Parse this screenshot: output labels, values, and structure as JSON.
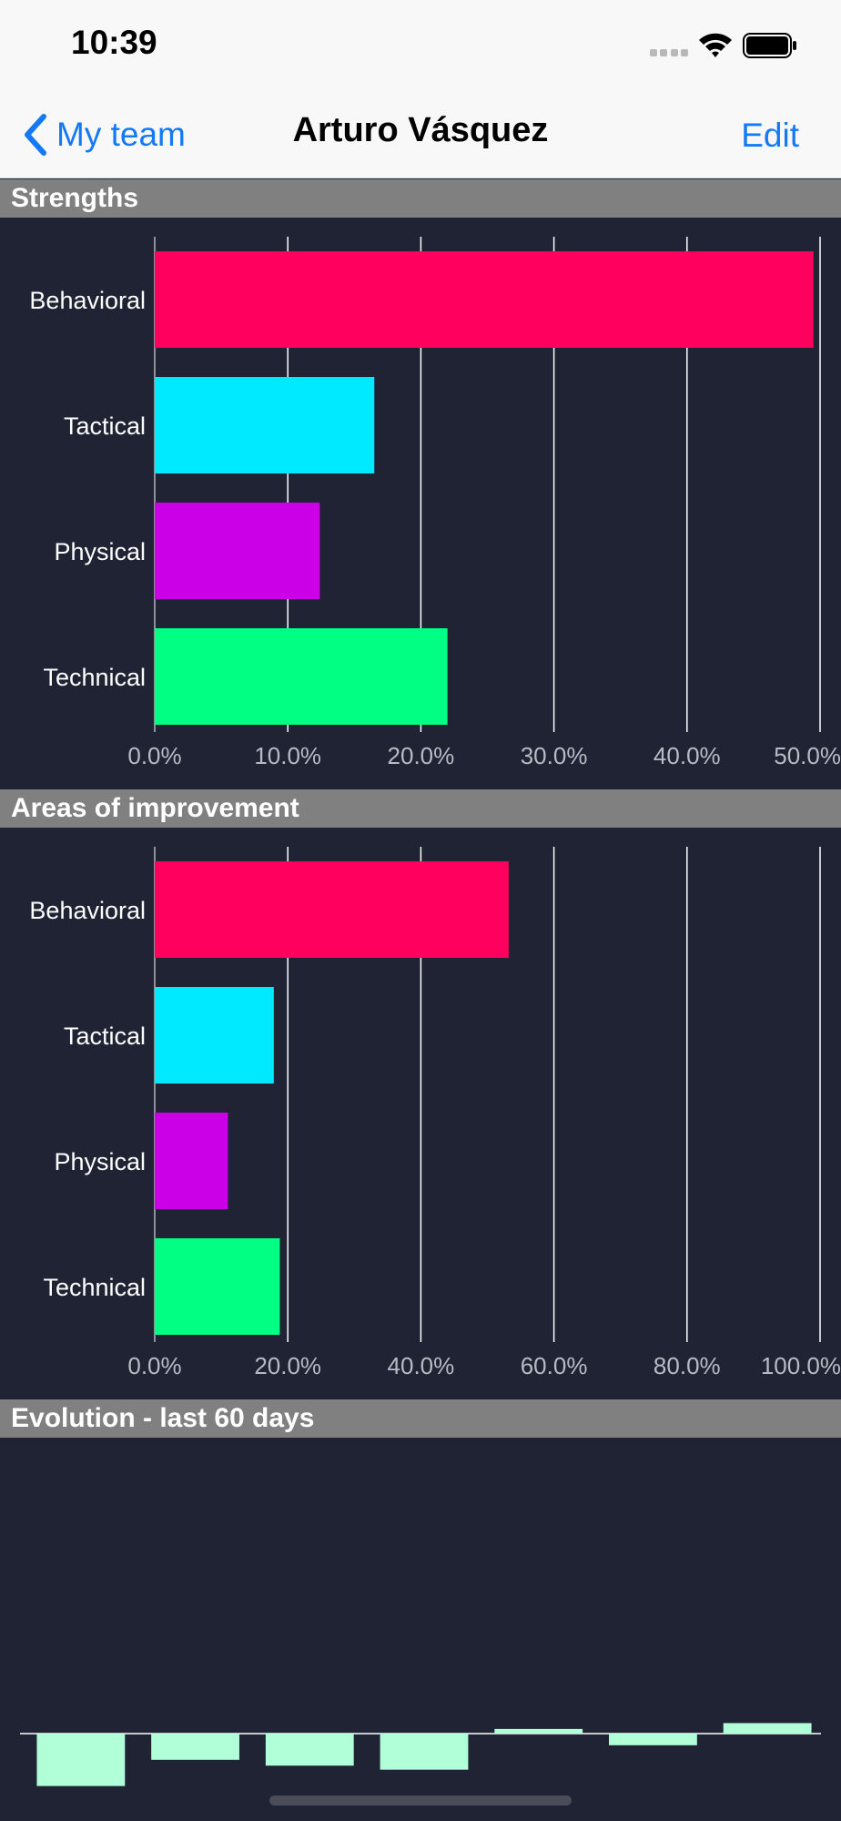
{
  "status_bar": {
    "time": "10:39"
  },
  "nav": {
    "back_label": "My team",
    "title": "Arturo Vásquez",
    "edit_label": "Edit"
  },
  "sections": {
    "strengths": "Strengths",
    "improvement": "Areas of improvement",
    "evolution": "Evolution - last 60 days"
  },
  "colors": {
    "behavioral": "#ff005e",
    "tactical": "#00eaff",
    "physical": "#cc00e6",
    "technical": "#00ff83",
    "evolution_bar": "#b0ffd9",
    "link": "#1479f5"
  },
  "chart_data": [
    {
      "type": "bar",
      "orientation": "horizontal",
      "categories": [
        "Behavioral",
        "Tactical",
        "Physical",
        "Technical"
      ],
      "values": [
        49.5,
        16.5,
        12.4,
        22.0
      ],
      "xlim": [
        0,
        50
      ],
      "xticks": [
        "0.0%",
        "10.0%",
        "20.0%",
        "30.0%",
        "40.0%",
        "50.0%"
      ],
      "grid": true
    },
    {
      "type": "bar",
      "orientation": "horizontal",
      "categories": [
        "Behavioral",
        "Tactical",
        "Physical",
        "Technical"
      ],
      "values": [
        53.2,
        17.9,
        11.0,
        18.8
      ],
      "xlim": [
        0,
        100
      ],
      "xticks": [
        "0.0%",
        "20.0%",
        "40.0%",
        "60.0%",
        "80.0%",
        "100.0%"
      ],
      "grid": true
    },
    {
      "type": "bar",
      "values": [
        -9,
        -4.5,
        -5.5,
        -6.2,
        0.8,
        -2,
        1.8
      ],
      "ylim": [
        -10,
        10
      ],
      "grid": false
    }
  ]
}
